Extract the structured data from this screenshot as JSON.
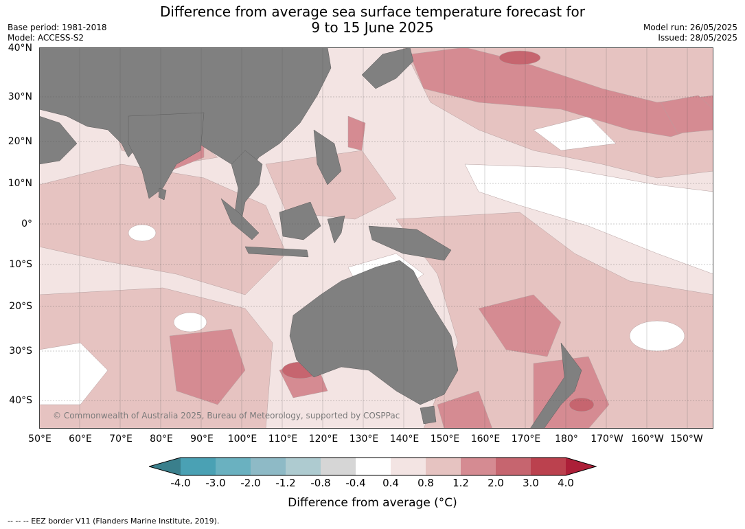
{
  "header": {
    "title_line1": "Difference from average sea surface temperature forecast for",
    "title_line2": "9 to 15 June 2025",
    "base_period": "Base period: 1981-2018",
    "model": "Model: ACCESS-S2",
    "model_run": "Model run: 26/05/2025",
    "issued": "Issued: 28/05/2025"
  },
  "axes": {
    "lat_labels": [
      "40°N",
      "30°N",
      "20°N",
      "10°N",
      "0°",
      "10°S",
      "20°S",
      "30°S",
      "40°S"
    ],
    "lon_labels": [
      "50°E",
      "60°E",
      "70°E",
      "80°E",
      "90°E",
      "100°E",
      "110°E",
      "120°E",
      "130°E",
      "140°E",
      "150°E",
      "160°E",
      "170°E",
      "180°",
      "170°W",
      "160°W",
      "150°W"
    ]
  },
  "copyright": "© Commonwealth of Australia 2025, Bureau of Meteorology, supported by COSPPac",
  "colorbar": {
    "ticks": [
      "-4.0",
      "-3.0",
      "-2.0",
      "-1.2",
      "-0.8",
      "-0.4",
      "0.4",
      "0.8",
      "1.2",
      "2.0",
      "3.0",
      "4.0"
    ],
    "colors": [
      "#3a7f8c",
      "#4aa1b4",
      "#6ab1c0",
      "#8ebac6",
      "#aecbd0",
      "#d6d6d6",
      "#ffffff",
      "#f3e4e3",
      "#e6c3c1",
      "#d58b92",
      "#c6656f",
      "#bb414e",
      "#ac1f38"
    ],
    "label": "Difference from average (°C)"
  },
  "colors": {
    "land": "#808080",
    "neutral": "#ffffff",
    "weak_warm": "#f3e4e3",
    "warm": "#e6c3c1",
    "strong_warm": "#d58b92",
    "very_strong_warm": "#c6656f"
  },
  "footnote": "--  --  -- EEZ border V11 (Flanders Marine Institute, 2019)."
}
